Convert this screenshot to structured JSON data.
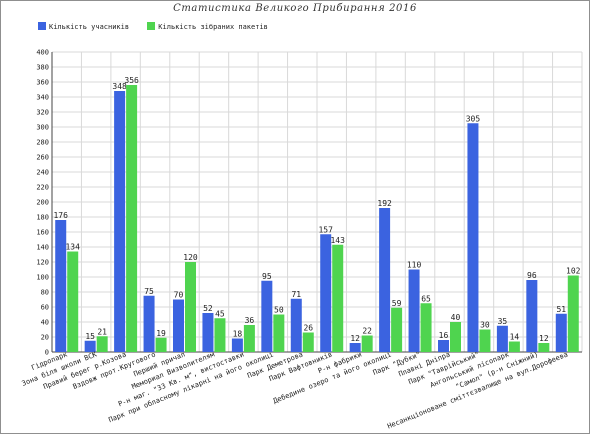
{
  "chart_data": {
    "type": "bar",
    "title": "Статистика Великого Прибирання 2016",
    "ylim": [
      0,
      400
    ],
    "yticks": [
      0,
      20,
      40,
      60,
      80,
      100,
      120,
      140,
      160,
      180,
      200,
      220,
      240,
      260,
      280,
      300,
      320,
      340,
      360,
      380,
      400
    ],
    "grid": true,
    "legend_position": "top-left",
    "categories": [
      "Гідропарк",
      "Зона біля школи ВСК",
      "Правий берег р.Козова",
      "Вздовж прот.Кругового",
      "Перший причал",
      "Мемориал Визволителям",
      "Р-н маг. \"33 Кв. м\", вистоставки",
      "Парк при обласному лікарні на його околиці",
      "Парк Деметрова",
      "Парк Вафтовників",
      "Р-н фабрики",
      "Дебедине озеро та його околиці",
      "Парк \"Дубки\"",
      "Плавні Дніпра",
      "Парк \"Таврійський\"",
      "Ангольський лісопарк",
      "\"Самол\" (р-н Сніжний)",
      "Несанкціоноване сміттєзвалище на вул.Дорофеева"
    ],
    "series": [
      {
        "name": "Кількість учасників",
        "color": "#3b63e0",
        "values": [
          176,
          15,
          348,
          75,
          70,
          52,
          18,
          95,
          71,
          157,
          12,
          192,
          110,
          16,
          305,
          35,
          96,
          51
        ]
      },
      {
        "name": "Кількість зібраних пакетів",
        "color": "#4fd44f",
        "values": [
          134,
          21,
          356,
          19,
          120,
          45,
          36,
          50,
          26,
          143,
          22,
          59,
          65,
          40,
          30,
          14,
          12,
          102
        ]
      }
    ]
  }
}
